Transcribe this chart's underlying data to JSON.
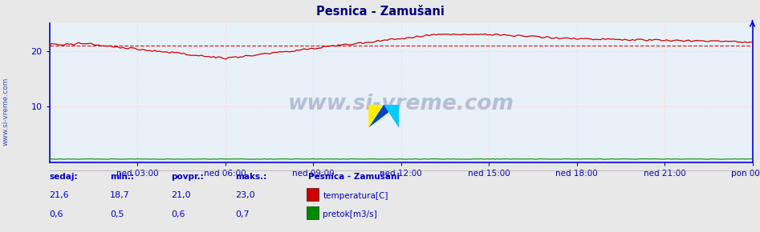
{
  "title": "Pesnica - Zamušani",
  "bg_color": "#e8e8e8",
  "plot_bg_color": "#e8f0f8",
  "grid_color": "#ffffff",
  "dotted_grid_color": "#ff9999",
  "axis_color": "#0000dd",
  "tick_label_color": "#0000cc",
  "title_color": "#000080",
  "watermark_text": "www.si-vreme.com",
  "temp_color": "#cc0000",
  "flow_color": "#008800",
  "avg_line_color": "#cc0000",
  "avg_temp": 21.0,
  "ylim_max": 25.0,
  "temp_sedaj": 21.6,
  "temp_min": 18.7,
  "temp_avg": 21.0,
  "temp_max": 23.0,
  "flow_sedaj": 0.6,
  "flow_min": 0.5,
  "flow_avg": 0.6,
  "flow_max": 0.7,
  "xtick_labels": [
    "ned 03:00",
    "ned 06:00",
    "ned 09:00",
    "ned 12:00",
    "ned 15:00",
    "ned 18:00",
    "ned 21:00",
    "pon 00:00"
  ],
  "station_label": "Pesnica - Zamušani",
  "legend_temp": "temperatura[C]",
  "legend_flow": "pretok[m3/s]",
  "label_sedaj": "sedaj:",
  "label_min": "min.:",
  "label_povpr": "povpr.:",
  "label_maks": "maks.:",
  "n_points": 288
}
